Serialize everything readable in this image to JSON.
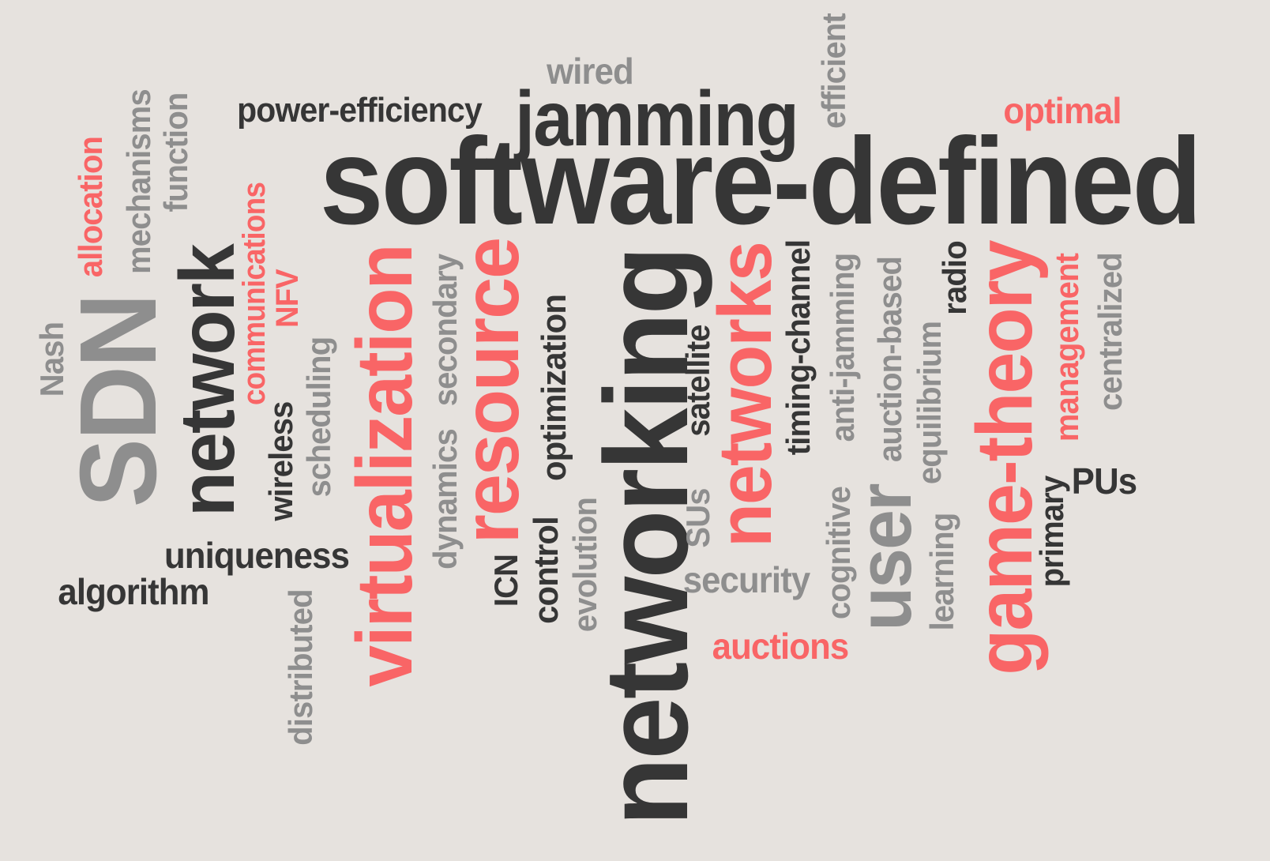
{
  "palette": {
    "background": "#e6e2de",
    "dark": "#363636",
    "gray": "#8e8e8e",
    "red": "#f96566"
  },
  "words": [
    "software-defined",
    "networking",
    "jamming",
    "wired",
    "efficient",
    "optimal",
    "power-efficiency",
    "mechanisms",
    "function",
    "allocation",
    "communications",
    "network",
    "SDN",
    "Nash",
    "NFV",
    "wireless",
    "scheduling",
    "virtualization",
    "secondary",
    "dynamics",
    "resource",
    "optimization",
    "control",
    "evolution",
    "ICN",
    "satellite",
    "SUs",
    "networks",
    "security",
    "auctions",
    "timing-channel",
    "anti-jamming",
    "cognitive",
    "auction-based",
    "user",
    "equilibrium",
    "learning",
    "radio",
    "game-theory",
    "management",
    "primary",
    "PUs",
    "centralized",
    "uniqueness",
    "algorithm",
    "distributed"
  ]
}
